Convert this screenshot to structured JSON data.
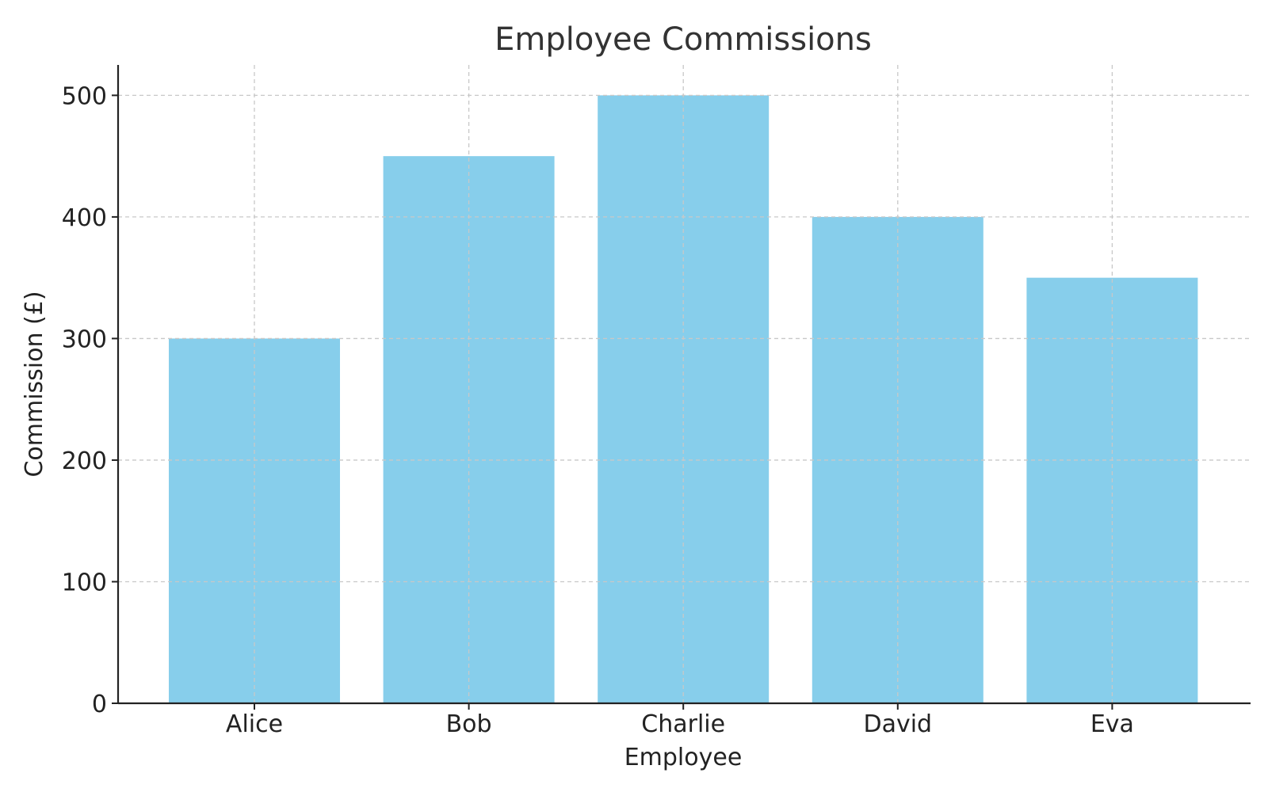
{
  "chart_data": {
    "type": "bar",
    "title": "Employee Commissions",
    "xlabel": "Employee",
    "ylabel": "Commission (£)",
    "categories": [
      "Alice",
      "Bob",
      "Charlie",
      "David",
      "Eva"
    ],
    "values": [
      300,
      450,
      500,
      400,
      350
    ],
    "ylim": [
      0,
      525
    ],
    "yticks": [
      0,
      100,
      200,
      300,
      400,
      500
    ],
    "grid": true,
    "legend": false,
    "colors": {
      "bar": "#87CEEB",
      "grid": "#c8c8c8",
      "axis": "#222222"
    }
  }
}
